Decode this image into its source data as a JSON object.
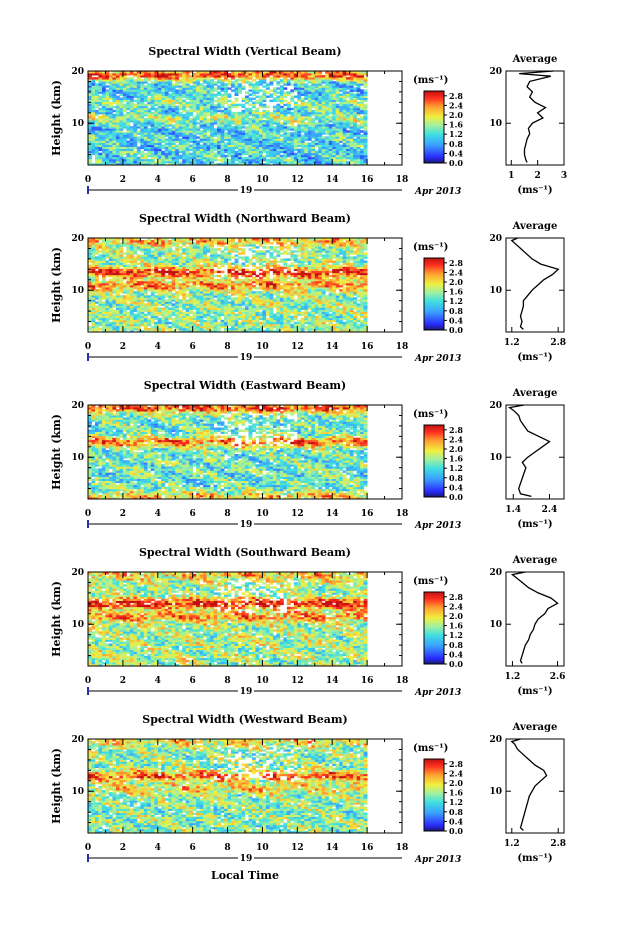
{
  "figure": {
    "date_label": "Apr 2013",
    "day_label": "19",
    "xlabel": "Local Time",
    "ylabel": "Height (km)",
    "colorbar_unit": "(ms⁻¹)",
    "avg_title": "Average",
    "avg_unit": "(ms⁻¹)"
  },
  "chart_data": [
    {
      "type": "heatmap",
      "title": "Spectral Width (Vertical Beam)",
      "x_ticks": [
        "0",
        "2",
        "4",
        "6",
        "8",
        "10",
        "12",
        "14",
        "16",
        "18"
      ],
      "xlim": [
        0,
        18
      ],
      "data_xlim": [
        0,
        16
      ],
      "y_ticks": [
        "10",
        "20"
      ],
      "ylim": [
        2,
        20
      ],
      "colorbar_ticks": [
        "0.0",
        "0.4",
        "0.8",
        "1.2",
        "1.6",
        "2.0",
        "2.4",
        "2.8"
      ],
      "clim": [
        0,
        3.0
      ],
      "base": 1.15,
      "bands": [
        [
          19.3,
          1.5
        ],
        [
          14,
          0.3
        ],
        [
          11,
          0.5
        ]
      ],
      "avg_profile": {
        "x_ticks": [
          "1",
          "2",
          "3"
        ],
        "xlim": [
          0.8,
          3.0
        ],
        "heights": [
          2.5,
          3,
          4,
          5,
          6,
          7,
          8,
          9,
          10,
          11,
          12,
          13,
          14,
          15,
          16,
          17,
          18,
          19,
          19.5,
          20
        ],
        "values": [
          1.6,
          1.55,
          1.5,
          1.5,
          1.55,
          1.6,
          1.7,
          1.65,
          1.8,
          2.2,
          2.0,
          2.3,
          1.9,
          1.7,
          1.8,
          1.6,
          1.7,
          2.5,
          1.3,
          2.6
        ]
      }
    },
    {
      "type": "heatmap",
      "title": "Spectral Width (Northward Beam)",
      "x_ticks": [
        "0",
        "2",
        "4",
        "6",
        "8",
        "10",
        "12",
        "14",
        "16",
        "18"
      ],
      "xlim": [
        0,
        18
      ],
      "data_xlim": [
        0,
        16
      ],
      "y_ticks": [
        "10",
        "20"
      ],
      "ylim": [
        2,
        20
      ],
      "colorbar_ticks": [
        "0.0",
        "0.4",
        "0.8",
        "1.2",
        "1.6",
        "2.0",
        "2.4",
        "2.8"
      ],
      "clim": [
        0,
        3.0
      ],
      "base": 1.55,
      "bands": [
        [
          13.5,
          1.2
        ],
        [
          11,
          0.8
        ],
        [
          19.5,
          0.6
        ]
      ],
      "avg_profile": {
        "x_ticks": [
          "1.2",
          "2.8"
        ],
        "xlim": [
          1.0,
          3.0
        ],
        "heights": [
          2.5,
          3,
          4,
          5,
          6,
          7,
          8,
          9,
          10,
          11,
          12,
          13,
          14,
          15,
          16,
          17,
          18,
          19,
          19.5,
          20
        ],
        "values": [
          1.6,
          1.5,
          1.55,
          1.5,
          1.55,
          1.6,
          1.6,
          1.75,
          1.9,
          2.1,
          2.3,
          2.6,
          2.8,
          2.2,
          1.9,
          1.7,
          1.5,
          1.3,
          1.2,
          1.4
        ]
      }
    },
    {
      "type": "heatmap",
      "title": "Spectral Width (Eastward Beam)",
      "x_ticks": [
        "0",
        "2",
        "4",
        "6",
        "8",
        "10",
        "12",
        "14",
        "16",
        "18"
      ],
      "xlim": [
        0,
        18
      ],
      "data_xlim": [
        0,
        16
      ],
      "y_ticks": [
        "10",
        "20"
      ],
      "ylim": [
        2,
        20
      ],
      "colorbar_ticks": [
        "0.0",
        "0.4",
        "0.8",
        "1.2",
        "1.6",
        "2.0",
        "2.4",
        "2.8"
      ],
      "clim": [
        0,
        3.0
      ],
      "base": 1.35,
      "bands": [
        [
          13,
          1.1
        ],
        [
          19.5,
          1.3
        ],
        [
          2.5,
          0.8
        ]
      ],
      "avg_profile": {
        "x_ticks": [
          "1.4",
          "2.4"
        ],
        "xlim": [
          1.2,
          2.8
        ],
        "heights": [
          2.5,
          3,
          4,
          5,
          6,
          7,
          8,
          9,
          10,
          11,
          12,
          13,
          14,
          15,
          16,
          17,
          18,
          19,
          19.5,
          20
        ],
        "values": [
          1.9,
          1.6,
          1.55,
          1.6,
          1.65,
          1.7,
          1.75,
          1.65,
          1.8,
          2.0,
          2.2,
          2.4,
          2.1,
          1.8,
          1.7,
          1.6,
          1.55,
          1.4,
          1.3,
          1.7
        ]
      }
    },
    {
      "type": "heatmap",
      "title": "Spectral Width (Southward Beam)",
      "x_ticks": [
        "0",
        "2",
        "4",
        "6",
        "8",
        "10",
        "12",
        "14",
        "16",
        "18"
      ],
      "xlim": [
        0,
        18
      ],
      "data_xlim": [
        0,
        16
      ],
      "y_ticks": [
        "10",
        "20"
      ],
      "ylim": [
        2,
        20
      ],
      "colorbar_ticks": [
        "0.0",
        "0.4",
        "0.8",
        "1.2",
        "1.6",
        "2.0",
        "2.4",
        "2.8"
      ],
      "clim": [
        0,
        3.0
      ],
      "base": 1.6,
      "bands": [
        [
          14,
          1.2
        ],
        [
          11.5,
          0.7
        ],
        [
          19.5,
          0.5
        ]
      ],
      "avg_profile": {
        "x_ticks": [
          "1.2",
          "2.6"
        ],
        "xlim": [
          1.0,
          2.8
        ],
        "heights": [
          2.5,
          3,
          4,
          5,
          6,
          7,
          8,
          9,
          10,
          11,
          12,
          13,
          14,
          15,
          16,
          17,
          18,
          19,
          19.5,
          20
        ],
        "values": [
          1.5,
          1.45,
          1.5,
          1.55,
          1.6,
          1.7,
          1.75,
          1.85,
          1.9,
          2.0,
          2.2,
          2.3,
          2.6,
          2.4,
          2.0,
          1.7,
          1.5,
          1.3,
          1.2,
          1.6
        ]
      }
    },
    {
      "type": "heatmap",
      "title": "Spectral Width (Westward Beam)",
      "x_ticks": [
        "0",
        "2",
        "4",
        "6",
        "8",
        "10",
        "12",
        "14",
        "16",
        "18"
      ],
      "xlim": [
        0,
        18
      ],
      "data_xlim": [
        0,
        16
      ],
      "y_ticks": [
        "10",
        "20"
      ],
      "ylim": [
        2,
        20
      ],
      "colorbar_ticks": [
        "0.0",
        "0.4",
        "0.8",
        "1.2",
        "1.6",
        "2.0",
        "2.4",
        "2.8"
      ],
      "clim": [
        0,
        3.0
      ],
      "base": 1.5,
      "bands": [
        [
          13,
          1.0
        ],
        [
          19.5,
          0.5
        ],
        [
          10.5,
          0.5
        ]
      ],
      "avg_profile": {
        "x_ticks": [
          "1.2",
          "2.8"
        ],
        "xlim": [
          1.0,
          3.0
        ],
        "heights": [
          2.5,
          3,
          4,
          5,
          6,
          7,
          8,
          9,
          10,
          11,
          12,
          13,
          14,
          15,
          16,
          17,
          18,
          19,
          19.5,
          20
        ],
        "values": [
          1.6,
          1.5,
          1.55,
          1.6,
          1.65,
          1.7,
          1.75,
          1.8,
          1.9,
          2.0,
          2.2,
          2.4,
          2.3,
          2.0,
          1.8,
          1.6,
          1.4,
          1.3,
          1.2,
          1.5
        ]
      }
    }
  ]
}
